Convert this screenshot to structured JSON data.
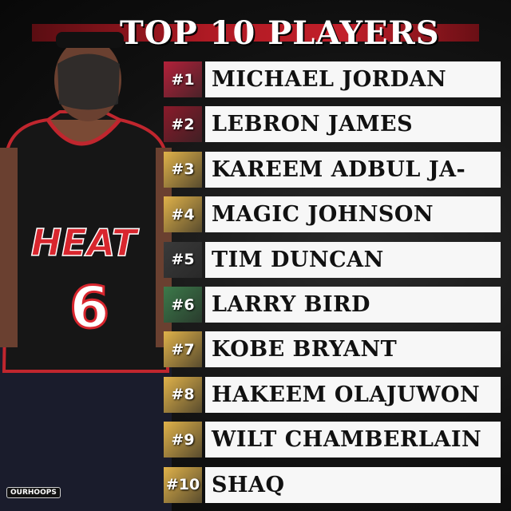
{
  "title": "TOP 10 PLAYERS",
  "jersey": {
    "team": "HEAT",
    "number": "6"
  },
  "players": [
    {
      "rank": "#1",
      "name": "MICHAEL JORDAN",
      "badge_color": "#b3213a"
    },
    {
      "rank": "#2",
      "name": "LEBRON JAMES",
      "badge_color": "#8a1a2a"
    },
    {
      "rank": "#3",
      "name": "KAREEM ADBUL JA-",
      "badge_color": "#e0b24a"
    },
    {
      "rank": "#4",
      "name": "MAGIC JOHNSON",
      "badge_color": "#e0b24a"
    },
    {
      "rank": "#5",
      "name": "TIM DUNCAN",
      "badge_color": "#3a3a3a"
    },
    {
      "rank": "#6",
      "name": "LARRY BIRD",
      "badge_color": "#3c7a4a"
    },
    {
      "rank": "#7",
      "name": "KOBE BRYANT",
      "badge_color": "#e0b24a"
    },
    {
      "rank": "#8",
      "name": "HAKEEM OLAJUWON",
      "badge_color": "#e0b24a"
    },
    {
      "rank": "#9",
      "name": "WILT CHAMBERLAIN",
      "badge_color": "#e0b24a"
    },
    {
      "rank": "#10",
      "name": "SHAQ",
      "badge_color": "#e0b24a"
    }
  ],
  "watermark": "OURHOOPS"
}
